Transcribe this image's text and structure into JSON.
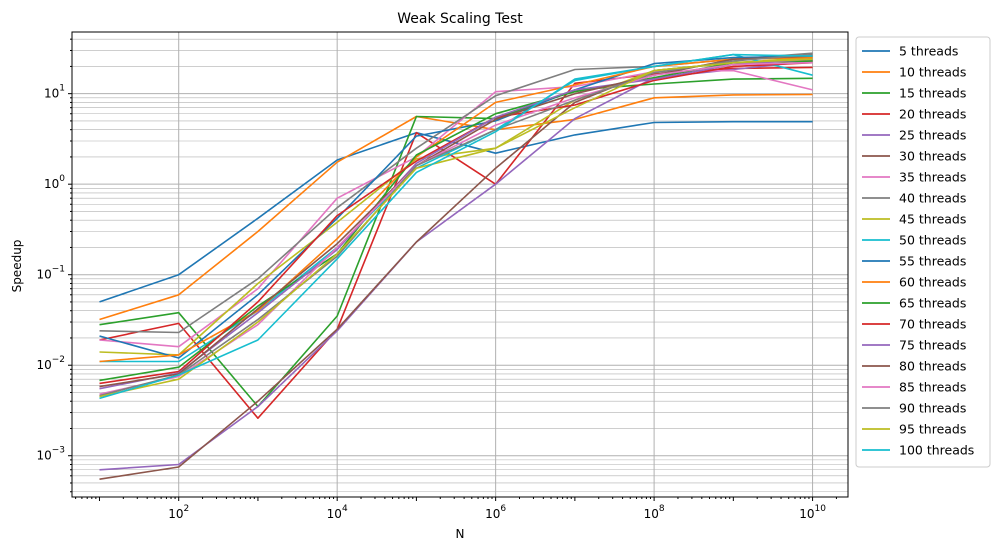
{
  "chart_data": {
    "type": "line",
    "title": "Weak Scaling Test",
    "xlabel": "N",
    "ylabel": "Speedup",
    "xscale": "log",
    "yscale": "log",
    "xlim": [
      4.5,
      28000000000
    ],
    "ylim": [
      0.00035,
      48
    ],
    "xticks": [
      {
        "value": 100,
        "base": "10",
        "exp": "2"
      },
      {
        "value": 10000,
        "base": "10",
        "exp": "4"
      },
      {
        "value": 1000000,
        "base": "10",
        "exp": "6"
      },
      {
        "value": 100000000,
        "base": "10",
        "exp": "8"
      },
      {
        "value": 10000000000,
        "base": "10",
        "exp": "10"
      }
    ],
    "yticks": [
      {
        "value": 0.001,
        "base": "10",
        "exp": "−3"
      },
      {
        "value": 0.01,
        "base": "10",
        "exp": "−2"
      },
      {
        "value": 0.1,
        "base": "10",
        "exp": "−1"
      },
      {
        "value": 1,
        "base": "10",
        "exp": "0"
      },
      {
        "value": 10,
        "base": "10",
        "exp": "1"
      }
    ],
    "grid": "both-major-minor",
    "legend_position": "outside-right",
    "x": [
      10,
      100,
      1000,
      10000,
      100000,
      1000000,
      10000000,
      100000000,
      1000000000,
      10000000000
    ],
    "series": [
      {
        "name": "5 threads",
        "color": "#1f77b4",
        "values": [
          0.05,
          0.1,
          0.42,
          1.85,
          3.7,
          2.2,
          3.5,
          4.8,
          4.9,
          4.9
        ]
      },
      {
        "name": "10 threads",
        "color": "#ff7f0e",
        "values": [
          0.032,
          0.06,
          0.3,
          1.75,
          5.6,
          4.0,
          5.2,
          9.0,
          9.7,
          9.8
        ]
      },
      {
        "name": "15 threads",
        "color": "#2ca02c",
        "values": [
          0.028,
          0.038,
          0.0035,
          0.035,
          5.6,
          5.3,
          11.0,
          12.8,
          14.5,
          14.8
        ]
      },
      {
        "name": "20 threads",
        "color": "#d62728",
        "values": [
          0.019,
          0.029,
          0.0026,
          0.025,
          3.7,
          1.0,
          13.0,
          16.5,
          19.0,
          19.5
        ]
      },
      {
        "name": "25 threads",
        "color": "#9467bd",
        "values": [
          0.0007,
          0.0008,
          0.0035,
          0.024,
          0.23,
          1.0,
          5.3,
          15.0,
          18.5,
          23.0
        ]
      },
      {
        "name": "30 threads",
        "color": "#8c564b",
        "values": [
          0.00055,
          0.00075,
          0.004,
          0.025,
          0.23,
          1.5,
          8.0,
          18.0,
          22.0,
          23.0
        ]
      },
      {
        "name": "35 threads",
        "color": "#e377c2",
        "values": [
          0.019,
          0.016,
          0.07,
          0.7,
          2.0,
          10.5,
          12.0,
          17.5,
          18.0,
          11.0
        ]
      },
      {
        "name": "40 threads",
        "color": "#7f7f7f",
        "values": [
          0.024,
          0.023,
          0.09,
          0.55,
          2.5,
          9.5,
          18.5,
          20.0,
          24.0,
          28.0
        ]
      },
      {
        "name": "45 threads",
        "color": "#bcbd22",
        "values": [
          0.014,
          0.013,
          0.08,
          0.38,
          1.9,
          2.5,
          8.5,
          18.0,
          22.0,
          25.0
        ]
      },
      {
        "name": "50 threads",
        "color": "#17becf",
        "values": [
          0.011,
          0.011,
          0.04,
          0.2,
          1.5,
          4.0,
          14.0,
          20.0,
          27.0,
          16.0
        ]
      },
      {
        "name": "55 threads",
        "color": "#1f77b4",
        "values": [
          0.021,
          0.012,
          0.06,
          0.42,
          3.4,
          5.0,
          11.0,
          21.5,
          25.0,
          26.0
        ]
      },
      {
        "name": "60 threads",
        "color": "#ff7f0e",
        "values": [
          0.011,
          0.013,
          0.04,
          0.25,
          2.0,
          8.0,
          12.5,
          20.0,
          24.0,
          25.0
        ]
      },
      {
        "name": "65 threads",
        "color": "#2ca02c",
        "values": [
          0.0068,
          0.0095,
          0.045,
          0.17,
          2.1,
          6.0,
          10.5,
          15.0,
          22.0,
          23.0
        ]
      },
      {
        "name": "70 threads",
        "color": "#d62728",
        "values": [
          0.0063,
          0.0085,
          0.05,
          0.45,
          1.8,
          5.5,
          7.5,
          14.0,
          20.0,
          22.0
        ]
      },
      {
        "name": "75 threads",
        "color": "#9467bd",
        "values": [
          0.0055,
          0.0082,
          0.038,
          0.19,
          1.7,
          5.5,
          11.0,
          14.5,
          21.0,
          24.0
        ]
      },
      {
        "name": "80 threads",
        "color": "#8c564b",
        "values": [
          0.0058,
          0.008,
          0.042,
          0.22,
          1.6,
          5.2,
          10.0,
          16.0,
          24.0,
          26.0
        ]
      },
      {
        "name": "85 threads",
        "color": "#e377c2",
        "values": [
          0.0048,
          0.0075,
          0.028,
          0.2,
          1.6,
          4.5,
          9.0,
          16.0,
          21.0,
          22.0
        ]
      },
      {
        "name": "90 threads",
        "color": "#7f7f7f",
        "values": [
          0.0046,
          0.0078,
          0.032,
          0.16,
          1.6,
          4.0,
          8.5,
          17.0,
          23.0,
          27.0
        ]
      },
      {
        "name": "95 threads",
        "color": "#bcbd22",
        "values": [
          0.0045,
          0.007,
          0.03,
          0.17,
          1.5,
          2.5,
          7.0,
          18.0,
          22.0,
          24.0
        ]
      },
      {
        "name": "100 threads",
        "color": "#17becf",
        "values": [
          0.0043,
          0.0078,
          0.019,
          0.15,
          1.35,
          3.8,
          14.5,
          20.0,
          27.0,
          26.0
        ]
      }
    ]
  }
}
